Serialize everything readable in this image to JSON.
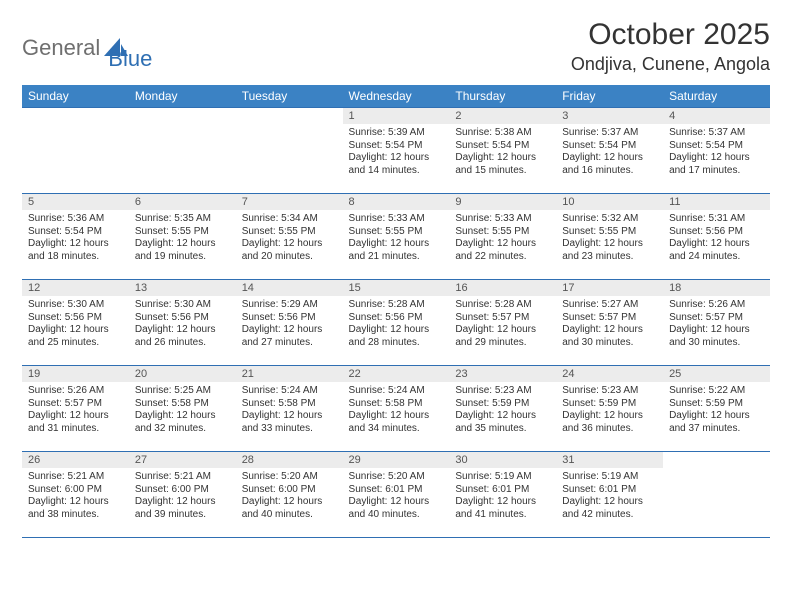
{
  "logo": {
    "part1": "General",
    "part2": "Blue"
  },
  "title": "October 2025",
  "location": "Ondjiva, Cunene, Angola",
  "colors": {
    "header_bg": "#3b82c4",
    "header_text": "#ffffff",
    "rule": "#2f6fb3",
    "daynum_bg": "#ececec",
    "logo_gray": "#6f6f6f",
    "logo_blue": "#2f6fb3"
  },
  "weekdays": [
    "Sunday",
    "Monday",
    "Tuesday",
    "Wednesday",
    "Thursday",
    "Friday",
    "Saturday"
  ],
  "grid": [
    [
      {
        "empty": true
      },
      {
        "empty": true
      },
      {
        "empty": true
      },
      {
        "day": "1",
        "sunrise": "Sunrise: 5:39 AM",
        "sunset": "Sunset: 5:54 PM",
        "dl1": "Daylight: 12 hours",
        "dl2": "and 14 minutes."
      },
      {
        "day": "2",
        "sunrise": "Sunrise: 5:38 AM",
        "sunset": "Sunset: 5:54 PM",
        "dl1": "Daylight: 12 hours",
        "dl2": "and 15 minutes."
      },
      {
        "day": "3",
        "sunrise": "Sunrise: 5:37 AM",
        "sunset": "Sunset: 5:54 PM",
        "dl1": "Daylight: 12 hours",
        "dl2": "and 16 minutes."
      },
      {
        "day": "4",
        "sunrise": "Sunrise: 5:37 AM",
        "sunset": "Sunset: 5:54 PM",
        "dl1": "Daylight: 12 hours",
        "dl2": "and 17 minutes."
      }
    ],
    [
      {
        "day": "5",
        "sunrise": "Sunrise: 5:36 AM",
        "sunset": "Sunset: 5:54 PM",
        "dl1": "Daylight: 12 hours",
        "dl2": "and 18 minutes."
      },
      {
        "day": "6",
        "sunrise": "Sunrise: 5:35 AM",
        "sunset": "Sunset: 5:55 PM",
        "dl1": "Daylight: 12 hours",
        "dl2": "and 19 minutes."
      },
      {
        "day": "7",
        "sunrise": "Sunrise: 5:34 AM",
        "sunset": "Sunset: 5:55 PM",
        "dl1": "Daylight: 12 hours",
        "dl2": "and 20 minutes."
      },
      {
        "day": "8",
        "sunrise": "Sunrise: 5:33 AM",
        "sunset": "Sunset: 5:55 PM",
        "dl1": "Daylight: 12 hours",
        "dl2": "and 21 minutes."
      },
      {
        "day": "9",
        "sunrise": "Sunrise: 5:33 AM",
        "sunset": "Sunset: 5:55 PM",
        "dl1": "Daylight: 12 hours",
        "dl2": "and 22 minutes."
      },
      {
        "day": "10",
        "sunrise": "Sunrise: 5:32 AM",
        "sunset": "Sunset: 5:55 PM",
        "dl1": "Daylight: 12 hours",
        "dl2": "and 23 minutes."
      },
      {
        "day": "11",
        "sunrise": "Sunrise: 5:31 AM",
        "sunset": "Sunset: 5:56 PM",
        "dl1": "Daylight: 12 hours",
        "dl2": "and 24 minutes."
      }
    ],
    [
      {
        "day": "12",
        "sunrise": "Sunrise: 5:30 AM",
        "sunset": "Sunset: 5:56 PM",
        "dl1": "Daylight: 12 hours",
        "dl2": "and 25 minutes."
      },
      {
        "day": "13",
        "sunrise": "Sunrise: 5:30 AM",
        "sunset": "Sunset: 5:56 PM",
        "dl1": "Daylight: 12 hours",
        "dl2": "and 26 minutes."
      },
      {
        "day": "14",
        "sunrise": "Sunrise: 5:29 AM",
        "sunset": "Sunset: 5:56 PM",
        "dl1": "Daylight: 12 hours",
        "dl2": "and 27 minutes."
      },
      {
        "day": "15",
        "sunrise": "Sunrise: 5:28 AM",
        "sunset": "Sunset: 5:56 PM",
        "dl1": "Daylight: 12 hours",
        "dl2": "and 28 minutes."
      },
      {
        "day": "16",
        "sunrise": "Sunrise: 5:28 AM",
        "sunset": "Sunset: 5:57 PM",
        "dl1": "Daylight: 12 hours",
        "dl2": "and 29 minutes."
      },
      {
        "day": "17",
        "sunrise": "Sunrise: 5:27 AM",
        "sunset": "Sunset: 5:57 PM",
        "dl1": "Daylight: 12 hours",
        "dl2": "and 30 minutes."
      },
      {
        "day": "18",
        "sunrise": "Sunrise: 5:26 AM",
        "sunset": "Sunset: 5:57 PM",
        "dl1": "Daylight: 12 hours",
        "dl2": "and 30 minutes."
      }
    ],
    [
      {
        "day": "19",
        "sunrise": "Sunrise: 5:26 AM",
        "sunset": "Sunset: 5:57 PM",
        "dl1": "Daylight: 12 hours",
        "dl2": "and 31 minutes."
      },
      {
        "day": "20",
        "sunrise": "Sunrise: 5:25 AM",
        "sunset": "Sunset: 5:58 PM",
        "dl1": "Daylight: 12 hours",
        "dl2": "and 32 minutes."
      },
      {
        "day": "21",
        "sunrise": "Sunrise: 5:24 AM",
        "sunset": "Sunset: 5:58 PM",
        "dl1": "Daylight: 12 hours",
        "dl2": "and 33 minutes."
      },
      {
        "day": "22",
        "sunrise": "Sunrise: 5:24 AM",
        "sunset": "Sunset: 5:58 PM",
        "dl1": "Daylight: 12 hours",
        "dl2": "and 34 minutes."
      },
      {
        "day": "23",
        "sunrise": "Sunrise: 5:23 AM",
        "sunset": "Sunset: 5:59 PM",
        "dl1": "Daylight: 12 hours",
        "dl2": "and 35 minutes."
      },
      {
        "day": "24",
        "sunrise": "Sunrise: 5:23 AM",
        "sunset": "Sunset: 5:59 PM",
        "dl1": "Daylight: 12 hours",
        "dl2": "and 36 minutes."
      },
      {
        "day": "25",
        "sunrise": "Sunrise: 5:22 AM",
        "sunset": "Sunset: 5:59 PM",
        "dl1": "Daylight: 12 hours",
        "dl2": "and 37 minutes."
      }
    ],
    [
      {
        "day": "26",
        "sunrise": "Sunrise: 5:21 AM",
        "sunset": "Sunset: 6:00 PM",
        "dl1": "Daylight: 12 hours",
        "dl2": "and 38 minutes."
      },
      {
        "day": "27",
        "sunrise": "Sunrise: 5:21 AM",
        "sunset": "Sunset: 6:00 PM",
        "dl1": "Daylight: 12 hours",
        "dl2": "and 39 minutes."
      },
      {
        "day": "28",
        "sunrise": "Sunrise: 5:20 AM",
        "sunset": "Sunset: 6:00 PM",
        "dl1": "Daylight: 12 hours",
        "dl2": "and 40 minutes."
      },
      {
        "day": "29",
        "sunrise": "Sunrise: 5:20 AM",
        "sunset": "Sunset: 6:01 PM",
        "dl1": "Daylight: 12 hours",
        "dl2": "and 40 minutes."
      },
      {
        "day": "30",
        "sunrise": "Sunrise: 5:19 AM",
        "sunset": "Sunset: 6:01 PM",
        "dl1": "Daylight: 12 hours",
        "dl2": "and 41 minutes."
      },
      {
        "day": "31",
        "sunrise": "Sunrise: 5:19 AM",
        "sunset": "Sunset: 6:01 PM",
        "dl1": "Daylight: 12 hours",
        "dl2": "and 42 minutes."
      },
      {
        "empty": true
      }
    ]
  ]
}
